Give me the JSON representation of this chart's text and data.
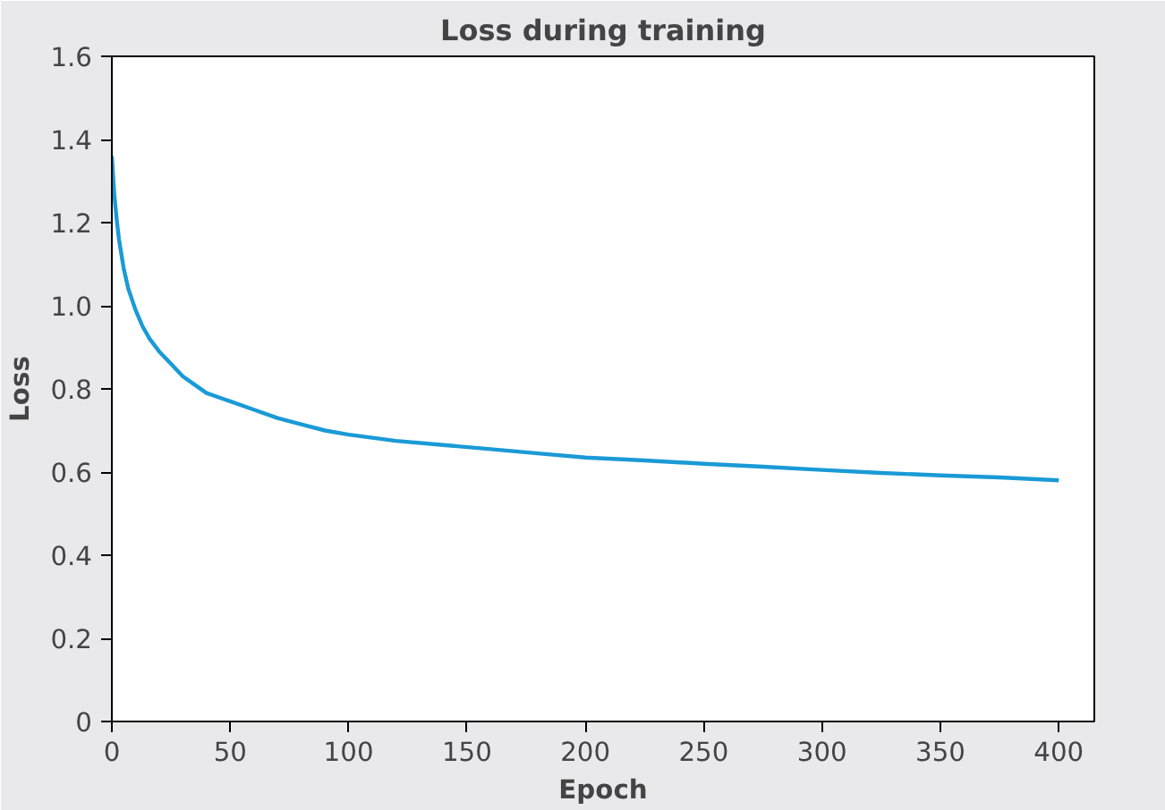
{
  "chart_data": {
    "type": "line",
    "title": "Loss during training",
    "xlabel": "Epoch",
    "ylabel": "Loss",
    "x": [
      0,
      1,
      2,
      3,
      5,
      7,
      10,
      13,
      16,
      20,
      25,
      30,
      35,
      40,
      50,
      60,
      70,
      80,
      90,
      100,
      120,
      140,
      160,
      180,
      200,
      225,
      250,
      275,
      300,
      325,
      350,
      375,
      400
    ],
    "series": [
      {
        "color": "#1a9ad6",
        "values": [
          1.36,
          1.27,
          1.21,
          1.16,
          1.09,
          1.04,
          0.99,
          0.95,
          0.92,
          0.89,
          0.86,
          0.83,
          0.81,
          0.79,
          0.77,
          0.75,
          0.73,
          0.715,
          0.7,
          0.69,
          0.675,
          0.665,
          0.655,
          0.645,
          0.635,
          0.628,
          0.62,
          0.613,
          0.605,
          0.598,
          0.592,
          0.587,
          0.58
        ]
      }
    ],
    "xlim": [
      0,
      415
    ],
    "ylim": [
      0,
      1.6
    ],
    "xticks": [
      0,
      50,
      100,
      150,
      200,
      250,
      300,
      350,
      400
    ],
    "yticks": [
      0,
      {
        "value": 0.2,
        "label": "0.2"
      },
      {
        "value": 0.4,
        "label": "0.4"
      },
      {
        "value": 0.6,
        "label": "0.6"
      },
      {
        "value": 0.8,
        "label": "0.8"
      },
      {
        "value": 1.0,
        "label": "1.0"
      },
      {
        "value": 1.2,
        "label": "1.2"
      },
      {
        "value": 1.4,
        "label": "1.4"
      },
      {
        "value": 1.6,
        "label": "1.6"
      }
    ],
    "grid": false,
    "marker": "none",
    "line_style": "solid"
  }
}
